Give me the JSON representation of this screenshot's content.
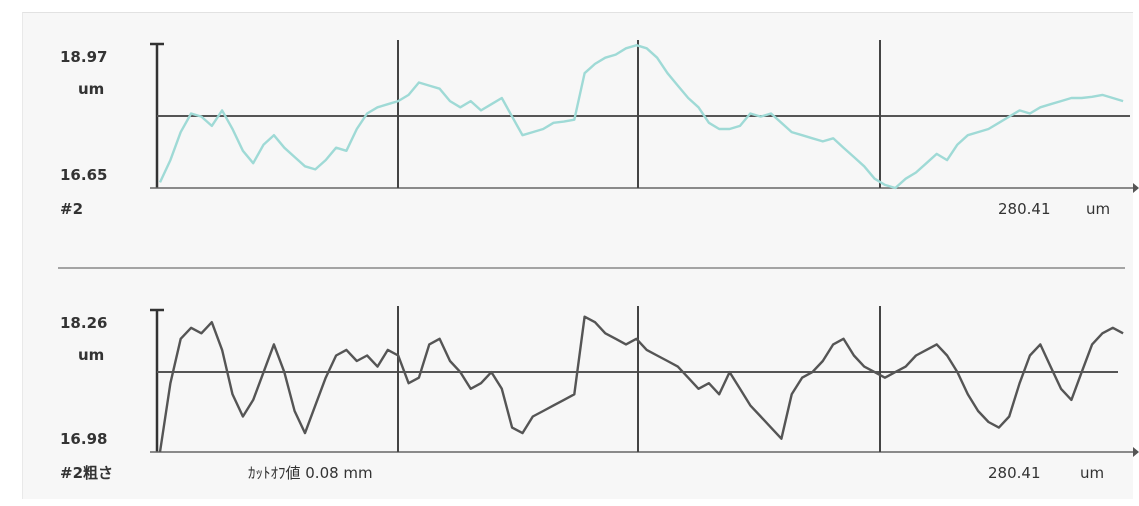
{
  "chart_data": [
    {
      "type": "line",
      "panel": "#2",
      "ytop_label": "18.97",
      "ybottom_label": "16.65",
      "yunit": "um",
      "xend_label": "280.41",
      "xunit": "um",
      "ylim": [
        16.65,
        18.97
      ],
      "xlim": [
        0,
        280.41
      ],
      "color": "#9fdad6",
      "series": [
        {
          "x": [
            0,
            3,
            6,
            9,
            12,
            15,
            18,
            21,
            24,
            27,
            30,
            33,
            36,
            39,
            42,
            45,
            48,
            51,
            54,
            57,
            60,
            63,
            66,
            69,
            72,
            75,
            78,
            81,
            84,
            87,
            90,
            93,
            96,
            99,
            102,
            105,
            108,
            111,
            114,
            117,
            120,
            123,
            126,
            129,
            132,
            135,
            138,
            141,
            144,
            147,
            150,
            153,
            156,
            159,
            162,
            165,
            168,
            171,
            174,
            177,
            180,
            183,
            186,
            189,
            192,
            195,
            198,
            201,
            204,
            207,
            210,
            213,
            216,
            219,
            222,
            225,
            228,
            231,
            234,
            237,
            240,
            243,
            246,
            249,
            252,
            255,
            258,
            261,
            264,
            267,
            270,
            273,
            276,
            279
          ],
          "y": [
            16.74,
            17.1,
            17.55,
            17.85,
            17.8,
            17.65,
            17.9,
            17.6,
            17.25,
            17.05,
            17.35,
            17.5,
            17.3,
            17.15,
            17.0,
            16.95,
            17.1,
            17.3,
            17.25,
            17.6,
            17.85,
            17.95,
            18.0,
            18.05,
            18.15,
            18.35,
            18.3,
            18.25,
            18.05,
            17.95,
            18.05,
            17.9,
            18.0,
            18.1,
            17.8,
            17.5,
            17.55,
            17.6,
            17.7,
            17.72,
            17.75,
            18.5,
            18.65,
            18.75,
            18.8,
            18.9,
            18.95,
            18.9,
            18.75,
            18.5,
            18.3,
            18.1,
            17.95,
            17.7,
            17.6,
            17.6,
            17.65,
            17.85,
            17.8,
            17.85,
            17.7,
            17.55,
            17.5,
            17.45,
            17.4,
            17.45,
            17.3,
            17.15,
            17.0,
            16.8,
            16.7,
            16.65,
            16.8,
            16.9,
            17.05,
            17.2,
            17.1,
            17.35,
            17.5,
            17.55,
            17.6,
            17.7,
            17.8,
            17.9,
            17.85,
            17.95,
            18.0,
            18.05,
            18.1,
            18.1,
            18.12,
            18.15,
            18.1,
            18.05
          ]
        }
      ]
    },
    {
      "type": "line",
      "panel": "#2粗さ",
      "ytop_label": "18.26",
      "ybottom_label": "16.98",
      "yunit": "um",
      "xend_label": "280.41",
      "xunit": "um",
      "cutoff_label": "ｶｯﾄｵﾌ値 0.08 mm",
      "ylim": [
        16.98,
        18.26
      ],
      "xlim": [
        0,
        280.41
      ],
      "color": "#555555",
      "series": [
        {
          "x": [
            0,
            3,
            6,
            9,
            12,
            15,
            18,
            21,
            24,
            27,
            30,
            33,
            36,
            39,
            42,
            45,
            48,
            51,
            54,
            57,
            60,
            63,
            66,
            69,
            72,
            75,
            78,
            81,
            84,
            87,
            90,
            93,
            96,
            99,
            102,
            105,
            108,
            111,
            114,
            117,
            120,
            123,
            126,
            129,
            132,
            135,
            138,
            141,
            144,
            147,
            150,
            153,
            156,
            159,
            162,
            165,
            168,
            171,
            174,
            177,
            180,
            183,
            186,
            189,
            192,
            195,
            198,
            201,
            204,
            207,
            210,
            213,
            216,
            219,
            222,
            225,
            228,
            231,
            234,
            237,
            240,
            243,
            246,
            249,
            252,
            255,
            258,
            261,
            264,
            267,
            270,
            273,
            276,
            279
          ],
          "y": [
            16.98,
            17.6,
            18.0,
            18.1,
            18.05,
            18.15,
            17.9,
            17.5,
            17.3,
            17.45,
            17.7,
            17.95,
            17.7,
            17.35,
            17.15,
            17.4,
            17.65,
            17.85,
            17.9,
            17.8,
            17.85,
            17.75,
            17.9,
            17.85,
            17.6,
            17.65,
            17.95,
            18.0,
            17.8,
            17.7,
            17.55,
            17.6,
            17.7,
            17.55,
            17.2,
            17.15,
            17.3,
            17.35,
            17.4,
            17.45,
            17.5,
            18.2,
            18.15,
            18.05,
            18.0,
            17.95,
            18.0,
            17.9,
            17.85,
            17.8,
            17.75,
            17.65,
            17.55,
            17.6,
            17.5,
            17.7,
            17.55,
            17.4,
            17.3,
            17.2,
            17.1,
            17.5,
            17.65,
            17.7,
            17.8,
            17.95,
            18.0,
            17.85,
            17.75,
            17.7,
            17.65,
            17.7,
            17.75,
            17.85,
            17.9,
            17.95,
            17.85,
            17.7,
            17.5,
            17.35,
            17.25,
            17.2,
            17.3,
            17.6,
            17.85,
            17.95,
            17.75,
            17.55,
            17.45,
            17.7,
            17.95,
            18.05,
            18.1,
            18.05
          ]
        }
      ]
    }
  ]
}
